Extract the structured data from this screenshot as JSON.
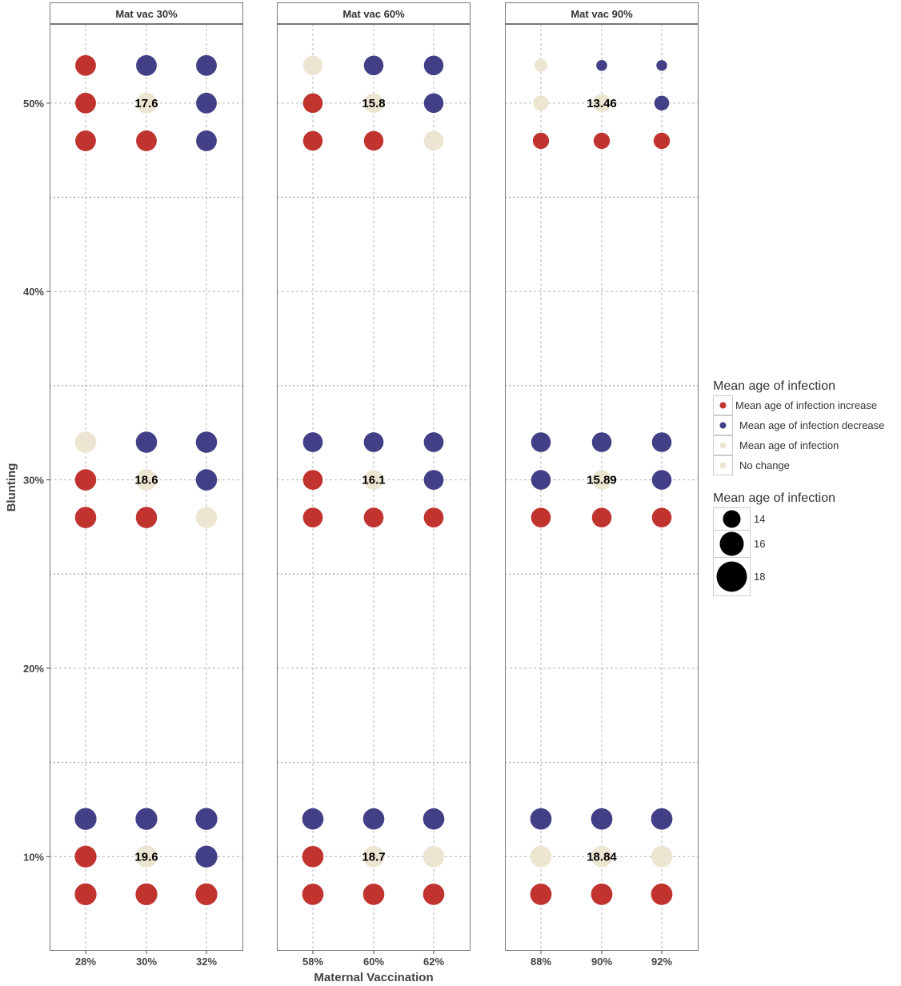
{
  "chart_data": {
    "type": "scatter",
    "title": "",
    "xlabel": "Maternal Vaccination",
    "ylabel": "Blunting",
    "y_ticks": [
      "10%",
      "20%",
      "30%",
      "40%",
      "50%"
    ],
    "y_tick_values": [
      10,
      20,
      30,
      40,
      50
    ],
    "ylim": [
      5,
      54.2
    ],
    "grid": true,
    "colors": {
      "increase": "#c0332f",
      "decrease": "#433f87",
      "no_change": "#ebe5d1"
    },
    "legend_color": {
      "title": "Mean age of infection",
      "entries": [
        {
          "label": "Mean age of infection increase",
          "color": "#c0332f"
        },
        {
          "label": "Mean age of infection decrease",
          "color": "#433f87"
        },
        {
          "label": "Mean age of infection",
          "color": "#ebe5d1"
        },
        {
          "label": "No change",
          "color": "#ebe5d1"
        }
      ]
    },
    "legend_size": {
      "title": "Mean age of infection",
      "entries": [
        {
          "label": "14",
          "value": 14
        },
        {
          "label": "16",
          "value": 16
        },
        {
          "label": "18",
          "value": 18
        }
      ]
    },
    "legend_placement": "right",
    "panels": [
      {
        "title": "Mat vac 30%",
        "x_ticks": [
          "28%",
          "30%",
          "32%"
        ],
        "groups": [
          {
            "y": 50,
            "center_label": "17.6",
            "top": [
              "increase",
              "decrease",
              "decrease"
            ],
            "mid": [
              "increase",
              "no_change",
              "decrease"
            ],
            "bottom": [
              "increase",
              "increase",
              "decrease"
            ],
            "value": 17.6
          },
          {
            "y": 30,
            "center_label": "18.6",
            "top": [
              "no_change",
              "decrease",
              "decrease"
            ],
            "mid": [
              "increase",
              "no_change",
              "decrease"
            ],
            "bottom": [
              "increase",
              "increase",
              "no_change"
            ],
            "value": 18.6
          },
          {
            "y": 10,
            "center_label": "19.6",
            "top": [
              "decrease",
              "decrease",
              "decrease"
            ],
            "mid": [
              "increase",
              "no_change",
              "decrease"
            ],
            "bottom": [
              "increase",
              "increase",
              "increase"
            ],
            "value": 19.6
          }
        ]
      },
      {
        "title": "Mat vac 60%",
        "x_ticks": [
          "58%",
          "60%",
          "62%"
        ],
        "groups": [
          {
            "y": 50,
            "center_label": "15.8",
            "top": [
              "no_change",
              "decrease",
              "decrease"
            ],
            "mid": [
              "increase",
              "no_change",
              "decrease"
            ],
            "bottom": [
              "increase",
              "increase",
              "no_change"
            ],
            "value": 15.8
          },
          {
            "y": 30,
            "center_label": "16.1",
            "top": [
              "decrease",
              "decrease",
              "decrease"
            ],
            "mid": [
              "increase",
              "no_change",
              "decrease"
            ],
            "bottom": [
              "increase",
              "increase",
              "increase"
            ],
            "value": 16.1
          },
          {
            "y": 10,
            "center_label": "18.7",
            "top": [
              "decrease",
              "decrease",
              "decrease"
            ],
            "mid": [
              "increase",
              "no_change",
              "no_change"
            ],
            "bottom": [
              "increase",
              "increase",
              "increase"
            ],
            "value": 18.7
          }
        ]
      },
      {
        "title": "Mat vac 90%",
        "x_ticks": [
          "88%",
          "90%",
          "92%"
        ],
        "groups": [
          {
            "y": 50,
            "center_label": "13.46",
            "top": [
              "no_change",
              "decrease",
              "decrease"
            ],
            "mid": [
              "no_change",
              "no_change",
              "decrease"
            ],
            "bottom": [
              "increase",
              "increase",
              "increase"
            ],
            "value": 13.46,
            "top_values": [
              13.1,
              12.7,
              12.3
            ]
          },
          {
            "y": 30,
            "center_label": "15.89",
            "top": [
              "decrease",
              "decrease",
              "decrease"
            ],
            "mid": [
              "decrease",
              "no_change",
              "decrease"
            ],
            "bottom": [
              "increase",
              "increase",
              "increase"
            ],
            "value": 15.89
          },
          {
            "y": 10,
            "center_label": "18.84",
            "top": [
              "decrease",
              "decrease",
              "decrease"
            ],
            "mid": [
              "no_change",
              "no_change",
              "no_change"
            ],
            "bottom": [
              "increase",
              "increase",
              "increase"
            ],
            "value": 18.84
          }
        ]
      }
    ]
  }
}
